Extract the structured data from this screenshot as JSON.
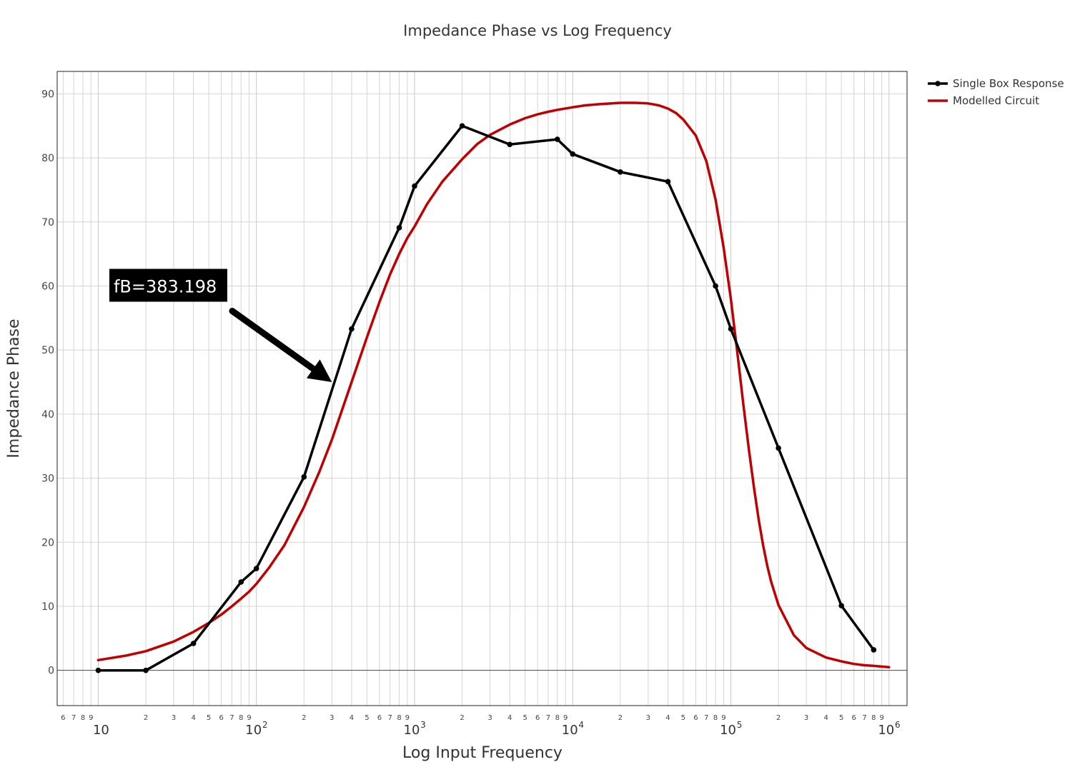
{
  "chart_data": {
    "type": "line",
    "title": "Impedance Phase vs Log Frequency",
    "xlabel": "Log Input Frequency",
    "ylabel": "Impedance Phase",
    "x_scale": "log",
    "xlim": [
      5.5,
      1300000
    ],
    "ylim": [
      -5.5,
      93.5
    ],
    "y_ticks": [
      0,
      10,
      20,
      30,
      40,
      50,
      60,
      70,
      80,
      90
    ],
    "x_major_ticks": [
      {
        "value": 10,
        "base": "10",
        "exp": ""
      },
      {
        "value": 100,
        "base": "10",
        "exp": "2"
      },
      {
        "value": 1000,
        "base": "10",
        "exp": "3"
      },
      {
        "value": 10000,
        "base": "10",
        "exp": "4"
      },
      {
        "value": 100000,
        "base": "10",
        "exp": "5"
      },
      {
        "value": 1000000,
        "base": "10",
        "exp": "6"
      }
    ],
    "x_minor_labels": [
      "2",
      "3",
      "4",
      "5",
      "6",
      "7",
      "8",
      "9"
    ],
    "x_minor_labels_below_first": [
      "6",
      "7",
      "8",
      "9"
    ],
    "grid": true,
    "legend_position": "top-right",
    "series": [
      {
        "name": "Single Box Response",
        "color": "#000000",
        "markers": true,
        "x": [
          10,
          20,
          40,
          80,
          100,
          200,
          400,
          800,
          1000,
          2000,
          4000,
          8000,
          10000,
          20000,
          40000,
          80000,
          100000,
          200000,
          500000,
          800000
        ],
        "y": [
          0,
          0,
          4.2,
          13.8,
          15.9,
          30.2,
          53.3,
          69.1,
          75.6,
          85,
          82.1,
          82.9,
          80.6,
          77.8,
          76.3,
          60,
          53.3,
          34.7,
          10.1,
          3.2
        ]
      },
      {
        "name": "Modelled Circuit",
        "color": "#c00000",
        "markers": false,
        "x": [
          10,
          15,
          20,
          30,
          40,
          50,
          60,
          70,
          80,
          90,
          100,
          120,
          150,
          200,
          250,
          300,
          400,
          500,
          600,
          700,
          800,
          900,
          1000,
          1200,
          1500,
          2000,
          2500,
          3000,
          4000,
          5000,
          6000,
          7000,
          8000,
          10000,
          12000,
          15000,
          20000,
          25000,
          30000,
          35000,
          40000,
          45000,
          50000,
          60000,
          70000,
          80000,
          90000,
          100000,
          110000,
          120000,
          130000,
          140000,
          150000,
          160000,
          170000,
          180000,
          200000,
          250000,
          300000,
          400000,
          500000,
          600000,
          700000,
          800000,
          1000000
        ],
        "y": [
          1.6,
          2.3,
          3.0,
          4.5,
          6.0,
          7.4,
          8.7,
          10.0,
          11.2,
          12.3,
          13.5,
          16.0,
          19.5,
          25.5,
          31.0,
          36.0,
          45.0,
          52.0,
          57.5,
          61.8,
          65.0,
          67.5,
          69.3,
          72.8,
          76.3,
          79.8,
          82.2,
          83.6,
          85.2,
          86.2,
          86.8,
          87.2,
          87.5,
          87.9,
          88.2,
          88.4,
          88.6,
          88.6,
          88.5,
          88.2,
          87.7,
          87.0,
          86.0,
          83.5,
          79.5,
          73.5,
          66.0,
          58.0,
          49.5,
          41.5,
          34.5,
          28.5,
          23.5,
          19.5,
          16.3,
          13.8,
          10.2,
          5.5,
          3.5,
          2.0,
          1.4,
          1.0,
          0.8,
          0.7,
          0.5
        ]
      }
    ],
    "annotations": [
      {
        "text": "fB=383.198",
        "x": 12,
        "y": 60,
        "arrow_to": [
          300,
          45
        ]
      }
    ]
  }
}
